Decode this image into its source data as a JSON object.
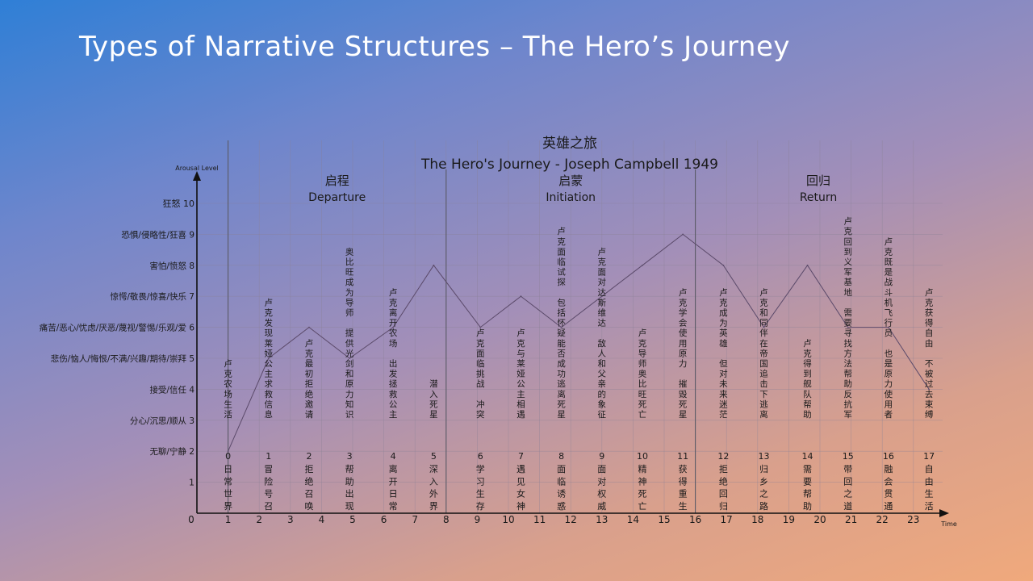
{
  "slide": {
    "title": "Types of Narrative Structures – The Hero’s Journey"
  },
  "chart_data": {
    "type": "line",
    "title": "英雄之旅",
    "subtitle": "The Hero's Journey - Joseph Campbell 1949",
    "xlabel": "Time",
    "ylabel": "Arousal Level",
    "xlim": [
      0,
      24
    ],
    "ylim": [
      0,
      11
    ],
    "grid": true,
    "x_ticks": [
      0,
      1,
      2,
      3,
      4,
      5,
      6,
      7,
      8,
      9,
      10,
      11,
      12,
      13,
      14,
      15,
      16,
      17,
      18,
      19,
      20,
      21,
      22,
      23
    ],
    "y_ticks": [
      {
        "value": 1,
        "label": "1"
      },
      {
        "value": 2,
        "label": "无聊/宁静 2"
      },
      {
        "value": 3,
        "label": "分心/沉思/顺从 3"
      },
      {
        "value": 4,
        "label": "接受/信任 4"
      },
      {
        "value": 5,
        "label": "悲伤/恼人/悔恨/不满/兴趣/期待/崇拜 5"
      },
      {
        "value": 6,
        "label": "痛苦/恶心/忧虑/厌恶/蔑视/警惕/乐观/爱 6"
      },
      {
        "value": 7,
        "label": "惊愕/敬畏/惊喜/快乐 7"
      },
      {
        "value": 8,
        "label": "害怕/愤怒 8"
      },
      {
        "value": 9,
        "label": "恐惧/侵略性/狂喜 9"
      },
      {
        "value": 10,
        "label": "狂怒 10"
      }
    ],
    "sections": [
      {
        "cn": "启程",
        "en": "Departure",
        "x_start": 1,
        "x_end": 8
      },
      {
        "cn": "启蒙",
        "en": "Initiation",
        "x_start": 8,
        "x_end": 16
      },
      {
        "cn": "回归",
        "en": "Return",
        "x_start": 16,
        "x_end": 24
      }
    ],
    "series": [
      {
        "x": [
          1,
          2.3,
          3.6,
          4.9,
          6.3,
          7.6,
          9.1,
          10.4,
          11.7,
          13,
          14.3,
          15.6,
          16.9,
          18.2,
          19.6,
          20.9,
          22.2,
          23.5
        ],
        "y": [
          2,
          5,
          6,
          5,
          6,
          8,
          6,
          7,
          6,
          7,
          8,
          9,
          8,
          6,
          8,
          6,
          6,
          4
        ]
      }
    ],
    "stages": [
      {
        "n": "0",
        "name": "日常世界",
        "desc": "卢克农场生活"
      },
      {
        "n": "1",
        "name": "冒险号召",
        "desc": "卢克发现莱娅公主求救信息"
      },
      {
        "n": "2",
        "name": "拒绝召唤",
        "desc": "卢克最初拒绝邀请"
      },
      {
        "n": "3",
        "name": "帮助出现",
        "desc": "奥比旺成为导师 提供光剑和原力知识"
      },
      {
        "n": "4",
        "name": "离开日常",
        "desc": "卢克离开农场 出发拯救公主"
      },
      {
        "n": "5",
        "name": "深入外界",
        "desc": "潜入死星"
      },
      {
        "n": "6",
        "name": "学习生存",
        "desc": "卢克面临挑战 冲突"
      },
      {
        "n": "7",
        "name": "遇见女神",
        "desc": "卢克与莱娅公主相遇"
      },
      {
        "n": "8",
        "name": "面临诱惑",
        "desc": "卢克面临试探 包括怀疑能否成功逃离死星"
      },
      {
        "n": "9",
        "name": "面对权威",
        "desc": "卢克面对达斯维达 敌人和父亲的象征"
      },
      {
        "n": "10",
        "name": "精神死亡",
        "desc": "卢克导师奥比旺死亡"
      },
      {
        "n": "11",
        "name": "获得重生",
        "desc": "卢克学会使用原力 摧毁死星"
      },
      {
        "n": "12",
        "name": "拒绝回归",
        "desc": "卢克成为英雄 但对未来迷茫"
      },
      {
        "n": "13",
        "name": "归乡之路",
        "desc": "卢克和同伴在帝国追击下逃离"
      },
      {
        "n": "14",
        "name": "需要帮助",
        "desc": "卢克得到舰队帮助"
      },
      {
        "n": "15",
        "name": "带回之道",
        "desc": "卢克回到义军基地 需要寻找方法帮助反抗军"
      },
      {
        "n": "16",
        "name": "融会贯通",
        "desc": "卢克既是战斗机飞行员 也是原力使用者"
      },
      {
        "n": "17",
        "name": "自由生活",
        "desc": "卢克获得自由 不被过去束缚"
      }
    ],
    "colors": {
      "axis": "#111111",
      "grid": "#8a8296",
      "line": "#5b4a6a",
      "text": "#1a1a1a"
    }
  }
}
